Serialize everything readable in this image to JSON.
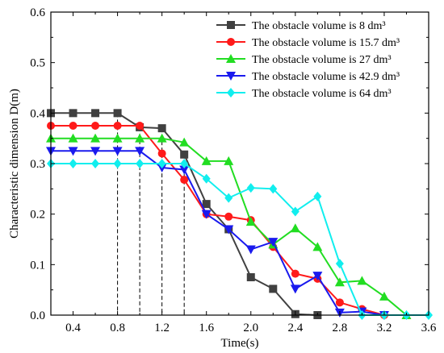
{
  "chart_data": {
    "type": "line",
    "xlabel": "Time(s)",
    "ylabel": "Characteristic dimension D(m)",
    "xlim": [
      0.2,
      3.6
    ],
    "ylim": [
      0,
      0.6
    ],
    "x_ticks": [
      "0.4",
      "0.8",
      "1.2",
      "1.6",
      "2.0",
      "2.4",
      "2.8",
      "3.2",
      "3.6"
    ],
    "y_ticks": [
      "0.0",
      "0.1",
      "0.2",
      "0.3",
      "0.4",
      "0.5",
      "0.6"
    ],
    "legend_position": "top-right",
    "reference_lines_x": [
      0.8,
      1.0,
      1.2,
      1.4
    ],
    "series": [
      {
        "name": "The obstacle volume is 8 dm³",
        "color": "#404040",
        "marker": "square",
        "x": [
          0.2,
          0.4,
          0.6,
          0.8,
          1.0,
          1.2,
          1.4,
          1.6,
          1.8,
          2.0,
          2.2,
          2.4,
          2.6
        ],
        "y": [
          0.4,
          0.4,
          0.4,
          0.4,
          0.372,
          0.37,
          0.318,
          0.22,
          0.17,
          0.075,
          0.052,
          0.002,
          0.0
        ]
      },
      {
        "name": "The obstacle volume is 15.7 dm³",
        "color": "#ff1a1a",
        "marker": "circle",
        "x": [
          0.2,
          0.4,
          0.6,
          0.8,
          1.0,
          1.2,
          1.4,
          1.6,
          1.8,
          2.0,
          2.2,
          2.4,
          2.6,
          2.8,
          3.0,
          3.2
        ],
        "y": [
          0.375,
          0.375,
          0.375,
          0.375,
          0.375,
          0.32,
          0.268,
          0.2,
          0.195,
          0.188,
          0.135,
          0.082,
          0.072,
          0.025,
          0.012,
          0.0
        ]
      },
      {
        "name": "The obstacle volume is 27 dm³",
        "color": "#22dd22",
        "marker": "triangle-up",
        "x": [
          0.2,
          0.4,
          0.6,
          0.8,
          1.0,
          1.2,
          1.4,
          1.6,
          1.8,
          2.0,
          2.2,
          2.4,
          2.6,
          2.8,
          3.0,
          3.2,
          3.4
        ],
        "y": [
          0.35,
          0.35,
          0.35,
          0.35,
          0.35,
          0.35,
          0.342,
          0.305,
          0.305,
          0.185,
          0.14,
          0.172,
          0.135,
          0.065,
          0.068,
          0.037,
          0.0
        ]
      },
      {
        "name": "The obstacle volume is 42.9 dm³",
        "color": "#1a1aee",
        "marker": "triangle-down",
        "x": [
          0.2,
          0.4,
          0.6,
          0.8,
          1.0,
          1.2,
          1.4,
          1.6,
          1.8,
          2.0,
          2.2,
          2.4,
          2.6,
          2.8,
          3.0,
          3.2
        ],
        "y": [
          0.325,
          0.325,
          0.325,
          0.325,
          0.325,
          0.292,
          0.288,
          0.2,
          0.17,
          0.13,
          0.145,
          0.052,
          0.078,
          0.005,
          0.007,
          0.0
        ]
      },
      {
        "name": "The obstacle volume is 64 dm³",
        "color": "#11eeee",
        "marker": "diamond",
        "x": [
          0.2,
          0.4,
          0.6,
          0.8,
          1.0,
          1.2,
          1.4,
          1.6,
          1.8,
          2.0,
          2.2,
          2.4,
          2.6,
          2.8,
          3.0,
          3.2,
          3.4,
          3.6
        ],
        "y": [
          0.3,
          0.3,
          0.3,
          0.3,
          0.3,
          0.3,
          0.3,
          0.27,
          0.232,
          0.252,
          0.25,
          0.205,
          0.235,
          0.102,
          0.0,
          0.0,
          0.0,
          0.0
        ]
      }
    ]
  }
}
